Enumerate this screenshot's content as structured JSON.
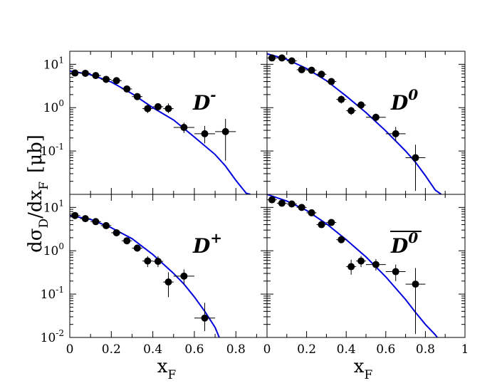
{
  "figure": {
    "ylabel": {
      "main": "dσ",
      "sub1": "D",
      "mid": "/dx",
      "sub2": "F",
      "unit": "[μb]"
    },
    "xlabel": {
      "main": "x",
      "sub": "F"
    },
    "x_tick_labels_left": [
      "0",
      "0.2",
      "0.4",
      "0.6",
      "0.8"
    ],
    "x_tick_labels_right": [
      "0",
      "0.2",
      "0.4",
      "0.6",
      "0.8",
      "1"
    ],
    "y_tick_labels_top": [
      {
        "base": "10",
        "exp": "1"
      },
      {
        "base": "10",
        "exp": "0"
      },
      {
        "base": "10",
        "exp": "-1"
      }
    ],
    "y_tick_labels_bottom": [
      {
        "base": "10",
        "exp": "1"
      },
      {
        "base": "10",
        "exp": "0"
      },
      {
        "base": "10",
        "exp": "-1"
      },
      {
        "base": "10",
        "exp": "-2"
      }
    ],
    "colors": {
      "curve": "#0000dd",
      "points": "#000000",
      "frame": "#000000"
    }
  },
  "chart_data": [
    {
      "type": "scatter",
      "panel": "top-left",
      "label": {
        "base": "D",
        "sup": "-",
        "bar": false
      },
      "xlim": [
        0,
        0.95
      ],
      "ylim": [
        0.01,
        20
      ],
      "yscale": "log",
      "series": [
        {
          "kind": "points",
          "x": [
            0.025,
            0.075,
            0.125,
            0.175,
            0.225,
            0.275,
            0.325,
            0.375,
            0.425,
            0.475,
            0.55,
            0.65,
            0.75
          ],
          "y": [
            6.3,
            6.2,
            5.5,
            4.5,
            4.2,
            2.7,
            1.8,
            0.95,
            1.05,
            0.95,
            0.35,
            0.25,
            0.28
          ],
          "xerr": [
            0.025,
            0.025,
            0.025,
            0.025,
            0.025,
            0.025,
            0.025,
            0.025,
            0.025,
            0.025,
            0.05,
            0.05,
            0.05
          ],
          "yerr_low": [
            5.6,
            5.6,
            4.9,
            4.0,
            3.7,
            2.3,
            1.55,
            0.75,
            0.85,
            0.75,
            0.26,
            0.15,
            0.06
          ],
          "yerr_high": [
            7.0,
            6.8,
            6.1,
            5.0,
            4.7,
            3.1,
            2.1,
            1.2,
            1.25,
            1.25,
            0.45,
            0.38,
            0.55
          ]
        },
        {
          "kind": "curve",
          "x": [
            0.0,
            0.1,
            0.2,
            0.3,
            0.4,
            0.5,
            0.6,
            0.7,
            0.75,
            0.8,
            0.85,
            0.87
          ],
          "y": [
            7.0,
            5.8,
            3.9,
            2.1,
            1.0,
            0.52,
            0.21,
            0.083,
            0.045,
            0.021,
            0.0106,
            0.01
          ]
        }
      ]
    },
    {
      "type": "scatter",
      "panel": "top-right",
      "label": {
        "base": "D",
        "sup": "0",
        "bar": false
      },
      "xlim": [
        0,
        1.0
      ],
      "ylim": [
        0.01,
        20
      ],
      "yscale": "log",
      "series": [
        {
          "kind": "points",
          "x": [
            0.025,
            0.075,
            0.125,
            0.175,
            0.225,
            0.275,
            0.325,
            0.375,
            0.425,
            0.475,
            0.55,
            0.65,
            0.75
          ],
          "y": [
            14,
            14,
            12,
            7.5,
            7.3,
            5.9,
            4.0,
            1.55,
            0.85,
            1.15,
            0.6,
            0.25,
            0.07
          ],
          "xerr": [
            0.025,
            0.025,
            0.025,
            0.025,
            0.025,
            0.025,
            0.025,
            0.025,
            0.025,
            0.025,
            0.05,
            0.05,
            0.05
          ],
          "yerr_low": [
            12.5,
            12.5,
            10.8,
            6.7,
            6.5,
            5.2,
            3.5,
            1.25,
            0.68,
            0.92,
            0.48,
            0.17,
            0.012
          ],
          "yerr_high": [
            16,
            16,
            13.5,
            8.5,
            8.2,
            6.7,
            4.6,
            1.9,
            1.05,
            1.4,
            0.73,
            0.36,
            0.14
          ]
        },
        {
          "kind": "curve",
          "x": [
            0.0,
            0.1,
            0.2,
            0.3,
            0.4,
            0.5,
            0.6,
            0.7,
            0.75,
            0.8,
            0.85,
            0.88
          ],
          "y": [
            17.5,
            13.0,
            8.0,
            4.2,
            1.85,
            0.77,
            0.29,
            0.1,
            0.055,
            0.027,
            0.0125,
            0.01
          ]
        }
      ]
    },
    {
      "type": "scatter",
      "panel": "bottom-left",
      "label": {
        "base": "D",
        "sup": "+",
        "bar": false
      },
      "xlim": [
        0,
        0.95
      ],
      "ylim": [
        0.01,
        20
      ],
      "yscale": "log",
      "series": [
        {
          "kind": "points",
          "x": [
            0.025,
            0.075,
            0.125,
            0.175,
            0.225,
            0.275,
            0.325,
            0.375,
            0.425,
            0.475,
            0.55,
            0.65
          ],
          "y": [
            6.5,
            5.5,
            4.7,
            3.8,
            2.6,
            1.7,
            1.15,
            0.58,
            0.57,
            0.19,
            0.26,
            0.028
          ],
          "xerr": [
            0.025,
            0.025,
            0.025,
            0.025,
            0.025,
            0.025,
            0.025,
            0.025,
            0.025,
            0.025,
            0.05,
            0.05
          ],
          "yerr_low": [
            5.9,
            4.9,
            4.2,
            3.3,
            2.2,
            1.45,
            0.95,
            0.42,
            0.42,
            0.085,
            0.17,
            0.014
          ],
          "yerr_high": [
            7.1,
            6.1,
            5.3,
            4.3,
            3.0,
            1.95,
            1.4,
            0.75,
            0.75,
            0.32,
            0.37,
            0.063
          ]
        },
        {
          "kind": "curve",
          "x": [
            0.0,
            0.1,
            0.2,
            0.3,
            0.4,
            0.5,
            0.55,
            0.6,
            0.65,
            0.7,
            0.72
          ],
          "y": [
            6.5,
            5.3,
            3.4,
            1.9,
            0.82,
            0.3,
            0.17,
            0.086,
            0.04,
            0.017,
            0.01
          ]
        }
      ]
    },
    {
      "type": "scatter",
      "panel": "bottom-right",
      "label": {
        "base": "D",
        "sup": "0",
        "bar": true
      },
      "xlim": [
        0,
        1.0
      ],
      "ylim": [
        0.01,
        20
      ],
      "yscale": "log",
      "series": [
        {
          "kind": "points",
          "x": [
            0.025,
            0.075,
            0.125,
            0.175,
            0.225,
            0.275,
            0.325,
            0.375,
            0.425,
            0.475,
            0.55,
            0.65,
            0.75
          ],
          "y": [
            15,
            12.5,
            12,
            10,
            7.5,
            4.0,
            4.5,
            1.8,
            0.43,
            0.58,
            0.48,
            0.33,
            0.17
          ],
          "xerr": [
            0.025,
            0.025,
            0.025,
            0.025,
            0.025,
            0.025,
            0.025,
            0.025,
            0.025,
            0.025,
            0.05,
            0.05,
            0.05
          ],
          "yerr_low": [
            13.5,
            11.2,
            10.8,
            9.0,
            6.7,
            3.5,
            3.9,
            1.5,
            0.28,
            0.42,
            0.35,
            0.2,
            0.012
          ],
          "yerr_high": [
            16.5,
            13.8,
            13.2,
            11,
            8.3,
            4.5,
            5.1,
            2.1,
            0.62,
            0.76,
            0.64,
            0.48,
            0.4
          ]
        },
        {
          "kind": "curve",
          "x": [
            0.0,
            0.1,
            0.2,
            0.3,
            0.4,
            0.5,
            0.6,
            0.7,
            0.75,
            0.8,
            0.85,
            0.86
          ],
          "y": [
            20.0,
            14.0,
            8.5,
            4.2,
            1.8,
            0.72,
            0.25,
            0.075,
            0.038,
            0.02,
            0.0115,
            0.01
          ]
        }
      ]
    }
  ]
}
